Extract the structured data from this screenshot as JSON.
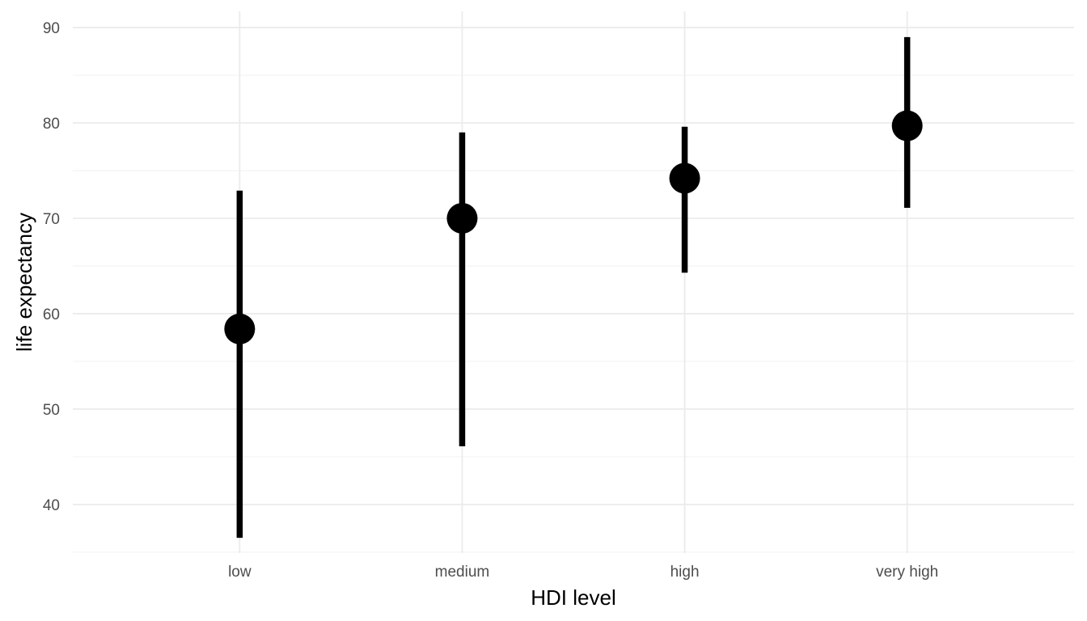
{
  "chart_data": {
    "type": "pointrange",
    "xlabel": "HDI level",
    "ylabel": "life expectancy",
    "categories": [
      "low",
      "medium",
      "high",
      "very high"
    ],
    "series": [
      {
        "points": [
          {
            "category": "low",
            "y": 58.4,
            "ymin": 36.5,
            "ymax": 72.9
          },
          {
            "category": "medium",
            "y": 70.0,
            "ymin": 46.1,
            "ymax": 79.0
          },
          {
            "category": "high",
            "y": 74.2,
            "ymin": 64.3,
            "ymax": 79.6
          },
          {
            "category": "very high",
            "y": 79.7,
            "ymin": 71.1,
            "ymax": 89.0
          }
        ]
      }
    ],
    "ylim": [
      34.9,
      91.7
    ],
    "yticks": [
      40,
      50,
      60,
      70,
      80,
      90
    ],
    "ytick_labels": [
      "40",
      "50",
      "60",
      "70",
      "80",
      "90"
    ],
    "grid": true,
    "legend": "none",
    "colors": {
      "mark": "#000000",
      "grid_major": "#ebebeb",
      "grid_minor": "#f2f2f2",
      "tick_text": "#4d4d4d"
    }
  }
}
